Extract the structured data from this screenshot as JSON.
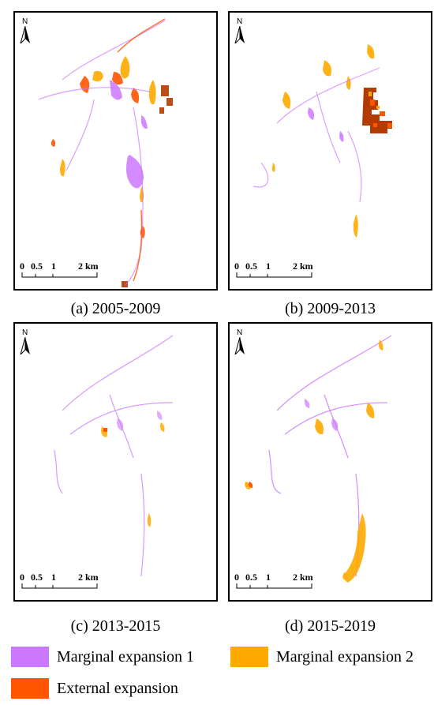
{
  "panels": [
    {
      "caption": "(a) 2005-2009"
    },
    {
      "caption": "(b) 2009-2013"
    },
    {
      "caption": "(c) 2013-2015"
    },
    {
      "caption": "(d) 2015-2019"
    }
  ],
  "north_label": "N",
  "scale_bar": {
    "ticks": [
      "0",
      "0.5",
      "1",
      "2 km"
    ]
  },
  "legend": [
    {
      "label": "Marginal expansion 1",
      "color": "#cc77ff"
    },
    {
      "label": "Marginal expansion 2",
      "color": "#ffaa00"
    },
    {
      "label": "External expansion",
      "color": "#ff5500"
    }
  ],
  "colors": {
    "marginal1": "#cc77ff",
    "marginal2": "#ffaa00",
    "external": "#ff5500",
    "external_dark": "#b33a00"
  }
}
